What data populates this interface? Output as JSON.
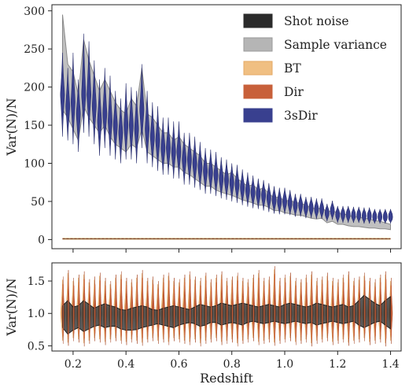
{
  "chart_data": [
    {
      "type": "violin",
      "ylabel": "Var(N)/N",
      "ylim": [
        -12,
        308
      ],
      "xlim": [
        0.12,
        1.44
      ],
      "yticks": [
        0,
        50,
        100,
        150,
        200,
        250,
        300
      ],
      "grid": false,
      "legend_placement": "top-right",
      "legend": [
        {
          "label": "Shot noise",
          "color": "#2b2b2b"
        },
        {
          "label": "Sample variance",
          "color": "#b5b5b5"
        },
        {
          "label": "BT",
          "color": "#f0bf82"
        },
        {
          "label": "Dir",
          "color": "#c8603a"
        },
        {
          "label": "3sDir",
          "color": "#39408f"
        }
      ],
      "redshift": [
        0.16,
        0.18,
        0.2,
        0.22,
        0.24,
        0.26,
        0.28,
        0.3,
        0.32,
        0.34,
        0.36,
        0.38,
        0.4,
        0.42,
        0.44,
        0.46,
        0.48,
        0.5,
        0.52,
        0.54,
        0.56,
        0.58,
        0.6,
        0.62,
        0.64,
        0.66,
        0.68,
        0.7,
        0.72,
        0.74,
        0.76,
        0.78,
        0.8,
        0.82,
        0.84,
        0.86,
        0.88,
        0.9,
        0.92,
        0.94,
        0.96,
        0.98,
        1.0,
        1.02,
        1.04,
        1.06,
        1.08,
        1.1,
        1.12,
        1.14,
        1.16,
        1.18,
        1.2,
        1.22,
        1.24,
        1.26,
        1.28,
        1.3,
        1.32,
        1.34,
        1.36,
        1.38,
        1.4
      ],
      "sample_variance_upper": [
        295,
        230,
        220,
        190,
        262,
        235,
        215,
        195,
        210,
        195,
        180,
        170,
        165,
        185,
        175,
        225,
        165,
        160,
        150,
        140,
        140,
        130,
        135,
        125,
        120,
        115,
        110,
        100,
        100,
        95,
        90,
        85,
        88,
        80,
        75,
        70,
        72,
        65,
        68,
        60,
        55,
        56,
        50,
        52,
        48,
        48,
        45,
        42,
        40,
        42,
        36,
        38,
        35,
        34,
        32,
        30,
        30,
        28,
        27,
        25,
        24,
        22,
        20
      ],
      "sample_variance_lower": [
        170,
        160,
        145,
        130,
        175,
        160,
        150,
        140,
        150,
        135,
        125,
        120,
        115,
        125,
        120,
        145,
        115,
        110,
        105,
        100,
        100,
        95,
        95,
        88,
        85,
        80,
        75,
        70,
        70,
        65,
        62,
        60,
        58,
        55,
        52,
        50,
        48,
        45,
        45,
        42,
        38,
        38,
        35,
        34,
        32,
        32,
        30,
        28,
        27,
        28,
        22,
        24,
        20,
        20,
        18,
        17,
        17,
        16,
        15,
        15,
        14,
        14,
        13
      ],
      "3sdir_center": [
        190,
        175,
        180,
        165,
        190,
        190,
        175,
        155,
        165,
        155,
        150,
        140,
        150,
        150,
        145,
        170,
        145,
        135,
        130,
        120,
        120,
        115,
        115,
        105,
        105,
        100,
        95,
        90,
        88,
        85,
        80,
        78,
        75,
        72,
        68,
        65,
        62,
        60,
        58,
        55,
        52,
        50,
        50,
        48,
        45,
        45,
        42,
        42,
        40,
        40,
        35,
        38,
        33,
        33,
        33,
        32,
        32,
        31,
        31,
        30,
        30,
        30,
        30
      ],
      "3sdir_min": [
        135,
        130,
        125,
        115,
        140,
        135,
        125,
        110,
        120,
        110,
        105,
        100,
        105,
        105,
        100,
        120,
        100,
        95,
        90,
        85,
        85,
        80,
        80,
        72,
        72,
        68,
        65,
        60,
        60,
        57,
        54,
        52,
        50,
        48,
        45,
        43,
        41,
        40,
        38,
        36,
        34,
        33,
        33,
        32,
        30,
        30,
        28,
        28,
        27,
        27,
        24,
        26,
        22,
        22,
        22,
        22,
        22,
        21,
        21,
        21,
        21,
        21,
        21
      ],
      "3sdir_max": [
        245,
        225,
        245,
        210,
        270,
        260,
        235,
        210,
        225,
        215,
        195,
        185,
        205,
        200,
        195,
        230,
        195,
        180,
        175,
        160,
        160,
        155,
        155,
        140,
        140,
        135,
        128,
        120,
        118,
        115,
        108,
        105,
        100,
        98,
        92,
        88,
        84,
        80,
        78,
        74,
        70,
        68,
        68,
        65,
        60,
        60,
        56,
        56,
        54,
        54,
        47,
        51,
        44,
        44,
        44,
        43,
        43,
        42,
        42,
        40,
        40,
        40,
        40
      ],
      "shot_noise": 1.0
    },
    {
      "type": "violin",
      "xlabel": "Redshift",
      "ylabel": "Var(N)/N",
      "ylim": [
        0.42,
        1.78
      ],
      "xlim": [
        0.12,
        1.44
      ],
      "yticks": [
        0.5,
        1.0,
        1.5
      ],
      "xticks": [
        0.2,
        0.4,
        0.6,
        0.8,
        1.0,
        1.2,
        1.4
      ],
      "grid": false,
      "redshift": [
        0.16,
        0.18,
        0.2,
        0.22,
        0.24,
        0.26,
        0.28,
        0.3,
        0.32,
        0.34,
        0.36,
        0.38,
        0.4,
        0.42,
        0.44,
        0.46,
        0.48,
        0.5,
        0.52,
        0.54,
        0.56,
        0.58,
        0.6,
        0.62,
        0.64,
        0.66,
        0.68,
        0.7,
        0.72,
        0.74,
        0.76,
        0.78,
        0.8,
        0.82,
        0.84,
        0.86,
        0.88,
        0.9,
        0.92,
        0.94,
        0.96,
        0.98,
        1.0,
        1.02,
        1.04,
        1.06,
        1.08,
        1.1,
        1.12,
        1.14,
        1.16,
        1.18,
        1.2,
        1.22,
        1.24,
        1.26,
        1.28,
        1.3,
        1.32,
        1.34,
        1.36,
        1.38,
        1.4
      ],
      "shot_noise_upper": [
        1.12,
        1.2,
        1.1,
        1.12,
        1.2,
        1.14,
        1.08,
        1.12,
        1.15,
        1.12,
        1.1,
        1.06,
        1.05,
        1.08,
        1.1,
        1.12,
        1.1,
        1.06,
        1.05,
        1.08,
        1.1,
        1.12,
        1.1,
        1.08,
        1.06,
        1.1,
        1.14,
        1.12,
        1.1,
        1.12,
        1.16,
        1.14,
        1.12,
        1.14,
        1.16,
        1.14,
        1.12,
        1.1,
        1.12,
        1.14,
        1.12,
        1.1,
        1.14,
        1.16,
        1.14,
        1.12,
        1.1,
        1.12,
        1.16,
        1.14,
        1.12,
        1.1,
        1.12,
        1.14,
        1.1,
        1.12,
        1.2,
        1.28,
        1.22,
        1.16,
        1.12,
        1.2,
        1.26
      ],
      "shot_noise_lower": [
        0.78,
        0.68,
        0.74,
        0.78,
        0.72,
        0.76,
        0.8,
        0.82,
        0.78,
        0.8,
        0.8,
        0.76,
        0.74,
        0.74,
        0.75,
        0.78,
        0.8,
        0.82,
        0.84,
        0.82,
        0.8,
        0.78,
        0.82,
        0.84,
        0.86,
        0.84,
        0.8,
        0.82,
        0.86,
        0.86,
        0.82,
        0.84,
        0.86,
        0.84,
        0.82,
        0.86,
        0.88,
        0.86,
        0.84,
        0.86,
        0.88,
        0.86,
        0.84,
        0.86,
        0.88,
        0.86,
        0.84,
        0.86,
        0.82,
        0.84,
        0.86,
        0.88,
        0.86,
        0.84,
        0.86,
        0.88,
        0.82,
        0.78,
        0.82,
        0.86,
        0.88,
        0.82,
        0.76
      ],
      "dir_min": [
        0.58,
        0.55,
        0.62,
        0.6,
        0.54,
        0.58,
        0.62,
        0.6,
        0.56,
        0.6,
        0.62,
        0.58,
        0.56,
        0.6,
        0.58,
        0.55,
        0.6,
        0.62,
        0.58,
        0.6,
        0.56,
        0.62,
        0.6,
        0.58,
        0.56,
        0.6,
        0.54,
        0.58,
        0.6,
        0.62,
        0.56,
        0.58,
        0.6,
        0.54,
        0.58,
        0.6,
        0.62,
        0.56,
        0.58,
        0.6,
        0.55,
        0.58,
        0.6,
        0.62,
        0.56,
        0.58,
        0.6,
        0.54,
        0.58,
        0.6,
        0.62,
        0.56,
        0.58,
        0.6,
        0.55,
        0.58,
        0.6,
        0.62,
        0.56,
        0.58,
        0.6,
        0.54,
        0.58
      ],
      "dir_max": [
        1.52,
        1.62,
        1.5,
        1.55,
        1.6,
        1.48,
        1.52,
        1.58,
        1.5,
        1.45,
        1.55,
        1.6,
        1.5,
        1.48,
        1.55,
        1.62,
        1.5,
        1.52,
        1.45,
        1.55,
        1.58,
        1.5,
        1.48,
        1.55,
        1.6,
        1.52,
        1.5,
        1.58,
        1.48,
        1.55,
        1.6,
        1.5,
        1.52,
        1.58,
        1.5,
        1.48,
        1.55,
        1.62,
        1.5,
        1.52,
        1.68,
        1.5,
        1.55,
        1.58,
        1.5,
        1.48,
        1.55,
        1.6,
        1.5,
        1.52,
        1.58,
        1.5,
        1.48,
        1.55,
        1.6,
        1.5,
        1.52,
        1.58,
        1.5,
        1.48,
        1.55,
        1.6,
        1.5
      ]
    }
  ]
}
